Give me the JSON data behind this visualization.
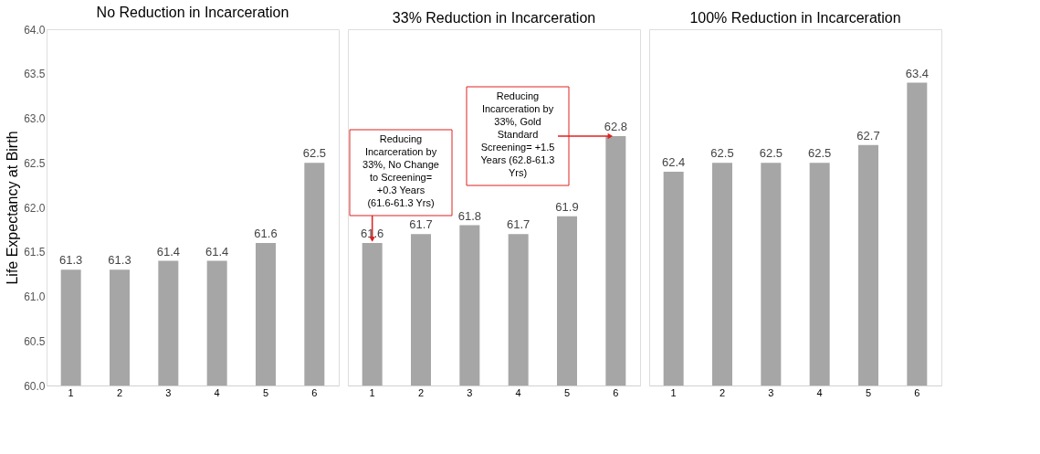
{
  "chart_data": [
    {
      "type": "bar",
      "title": "No Reduction in Incarceration",
      "ylabel": "Life Expectancy at Birth",
      "categories": [
        "1",
        "2",
        "3",
        "4",
        "5",
        "6"
      ],
      "values": [
        61.3,
        61.3,
        61.4,
        61.4,
        61.6,
        62.5
      ],
      "color": "#a6a6a6",
      "data_labels": true,
      "ylim": [
        60,
        64
      ],
      "yticks": [
        {
          "value": 60,
          "label": "60.0"
        },
        {
          "value": 60.5,
          "label": "60.5"
        },
        {
          "value": 61,
          "label": "61.0"
        },
        {
          "value": 61.5,
          "label": "61.5"
        },
        {
          "value": 62,
          "label": "62.0"
        },
        {
          "value": 62.5,
          "label": "62.5"
        },
        {
          "value": 63,
          "label": "63.0"
        },
        {
          "value": 63.5,
          "label": "63.5"
        },
        {
          "value": 64,
          "label": "64.0"
        }
      ]
    },
    {
      "type": "bar",
      "title": "33% Reduction in Incarceration",
      "categories": [
        "1",
        "2",
        "3",
        "4",
        "5",
        "6"
      ],
      "values": [
        61.6,
        61.7,
        61.8,
        61.7,
        61.9,
        62.8
      ],
      "color": "#a6a6a6",
      "data_labels": true,
      "tick_labels": "x",
      "ylim": [
        60,
        64
      ],
      "annotations": [
        {
          "text": "Reducing Incarceration by 33%, No Change to Screening= +0.3 Years (61.6-61.3 Yrs)",
          "x": "1",
          "y": 61.6
        },
        {
          "text": "Reducing Incarceration by 33%, Gold Standard Screening= +1.5 Years (62.8-61.3 Yrs)",
          "x": "6",
          "y": 62.8
        }
      ]
    },
    {
      "type": "bar",
      "title": "100% Reduction in Incarceration",
      "categories": [
        "1",
        "2",
        "3",
        "4",
        "5",
        "6"
      ],
      "values": [
        62.4,
        62.5,
        62.5,
        62.5,
        62.7,
        63.4
      ],
      "color": "#a6a6a6",
      "data_labels": true,
      "tick_labels": "x",
      "ylim": [
        60,
        64
      ]
    }
  ]
}
